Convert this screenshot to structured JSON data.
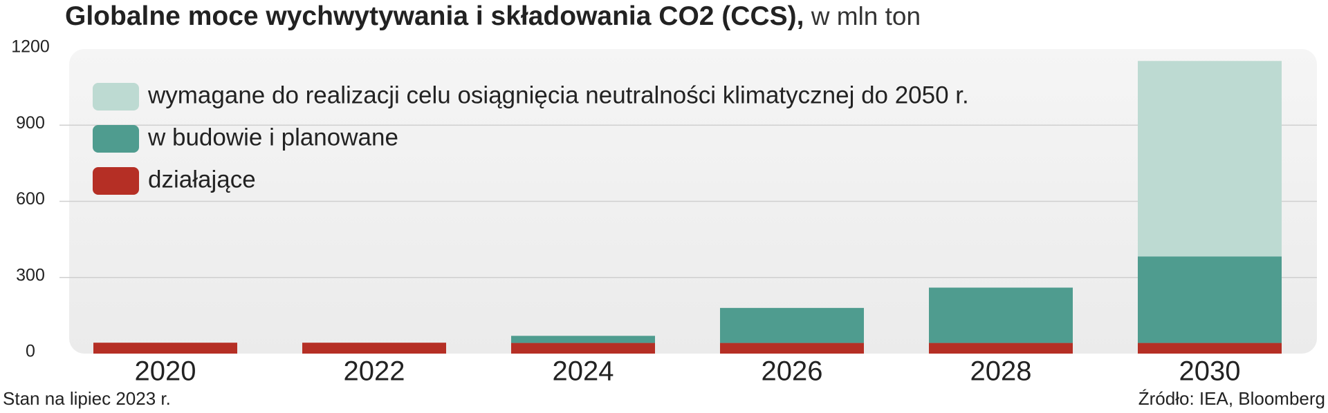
{
  "chart_data": {
    "type": "stacked_bar",
    "title": "Globalne moce wychwytywania i składowania CO2 (CCS),",
    "unit": " w mln ton",
    "categories": [
      "2020",
      "2022",
      "2024",
      "2026",
      "2028",
      "2030"
    ],
    "series": [
      {
        "name": "działające",
        "color": "#b52f25",
        "values": [
          43,
          43,
          42,
          42,
          42,
          42
        ]
      },
      {
        "name": "w budowie i planowane",
        "color": "#4f9c8f",
        "values": [
          null,
          null,
          28,
          138,
          218,
          341
        ]
      },
      {
        "name": "wymagane do realizacji celu osiągnięcia neutralności klimatycznej do 2050 r.",
        "color": "#bddad2",
        "values": [
          null,
          null,
          null,
          null,
          null,
          770
        ]
      }
    ],
    "ylim": [
      0,
      1200
    ],
    "yticks": [
      0,
      300,
      600,
      900,
      1200
    ],
    "grid": true,
    "note": "Stan na lipiec 2023 r.",
    "source": "Źródło: IEA, Bloomberg"
  }
}
